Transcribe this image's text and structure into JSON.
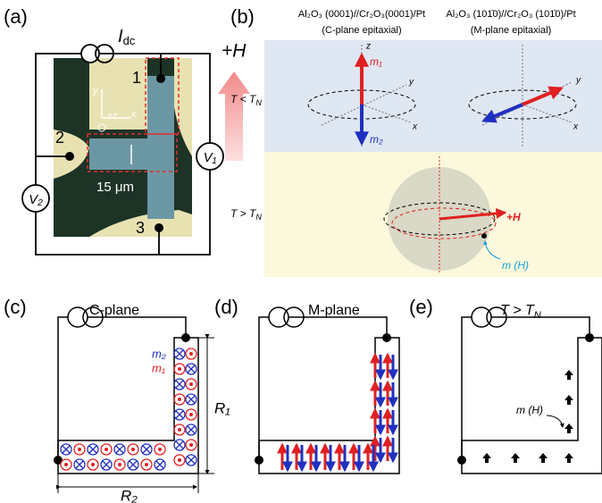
{
  "panel_a": {
    "label": "(a)",
    "current": {
      "base": "I",
      "sub": "dc"
    },
    "field": "+H",
    "contacts": [
      "1",
      "2",
      "3"
    ],
    "v1": "V₁",
    "v2": "V₂",
    "scale": "15 μm",
    "axis_y": "y",
    "axis_z": "+z",
    "axis_x": "x"
  },
  "panel_b": {
    "label": "(b)",
    "c_title": "Al₂O₃ (0001)//Cr₂O₃(0001)/Pt",
    "c_subtitle": "(C-plane epitaxial)",
    "m_title": "Al₂O₃ (101̄0)//Cr₂O₃ (101̄0)/Pt",
    "m_subtitle": "(M-plane epitaxial)",
    "row_low": {
      "left": "T < T",
      "sub": "N"
    },
    "row_high": {
      "left": "T > T",
      "sub": "N"
    },
    "m1": "m₁",
    "m2": "m₂",
    "axis_z": "z",
    "axis_y": "y",
    "axis_x": "x",
    "m_axis_y": "y",
    "m_axis_x": "x",
    "field": "+H",
    "moment": "m (H)"
  },
  "panel_c": {
    "label": "(c)",
    "title": "C-plane",
    "m2": "m₂",
    "m1": "m₁",
    "r1": "R₁",
    "r2": "R₂"
  },
  "panel_d": {
    "label": "(d)",
    "title": "M-plane"
  },
  "panel_e": {
    "label": "(e)",
    "title": {
      "left": "T > T",
      "sub": "N"
    },
    "moment": "m (H)"
  }
}
